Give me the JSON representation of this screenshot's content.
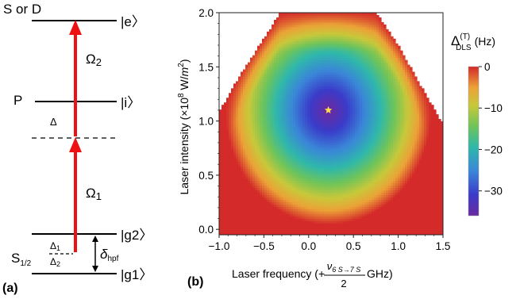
{
  "panel_a": {
    "panel_label": "(a)",
    "level_labels_left": {
      "top": "S or D",
      "mid": "P",
      "ground": "S"
    },
    "ground_sub": "1/2",
    "kets": {
      "e": "|e〉",
      "i": "|i〉",
      "g2": "|g2〉",
      "g1": "|g1〉"
    },
    "omega": {
      "upper": "Ω",
      "upper_sub": "2",
      "lower": "Ω",
      "lower_sub": "1"
    },
    "detuning": "Δ",
    "delta1": {
      "sym": "Δ",
      "sub": "1"
    },
    "delta2": {
      "sym": "Δ",
      "sub": "2"
    },
    "hpf": {
      "sym": "δ",
      "sub": "hpf"
    },
    "colors": {
      "arrow": "#ee1111",
      "line": "#000000"
    }
  },
  "panel_b": {
    "panel_label": "(b)",
    "ylabel_pre": "Laser intensity (×10",
    "ylabel_exp": "8",
    "ylabel_mid": " W/",
    "ylabel_m": "m",
    "ylabel_exp2": "2",
    "ylabel_post": ")",
    "xlabel_pre": "Laser frequency (+",
    "xlabel_num": "ν",
    "xlabel_num_sub": "6 S→7 S",
    "xlabel_den": "2",
    "xlabel_post": " GHz)",
    "colorbar_title": "Δ",
    "colorbar_sup": "(T)",
    "colorbar_sub": "DLS",
    "colorbar_unit": "(Hz)",
    "colors": {
      "star": "#ffe04a"
    }
  },
  "chart_data": {
    "type": "heatmap",
    "title": "",
    "xlabel": "Laser frequency (+ν6S→7S/2 GHz)",
    "ylabel": "Laser intensity (×10^8 W/m^2)",
    "xlim": [
      -1.0,
      1.5
    ],
    "ylim": [
      -0.05,
      2.0
    ],
    "x_ticks": [
      "-1.0",
      "-0.5",
      "0.0",
      "0.5",
      "1.0",
      "1.5"
    ],
    "x_tick_values": [
      -1.0,
      -0.5,
      0.0,
      0.5,
      1.0,
      1.5
    ],
    "y_ticks": [
      "0.0",
      "0.5",
      "1.0",
      "1.5",
      "2.0"
    ],
    "y_tick_values": [
      0.0,
      0.5,
      1.0,
      1.5,
      2.0
    ],
    "colorbar": {
      "label": "Δ(T)DLS (Hz)",
      "ticks": [
        "0",
        "-10",
        "-20",
        "-30"
      ],
      "tick_values": [
        0,
        -10,
        -20,
        -30
      ],
      "range": [
        -36,
        0
      ]
    },
    "minimum_marker": {
      "x": 0.22,
      "y": 1.1,
      "symbol": "star"
    },
    "valid_region_boundary": [
      {
        "x": -1.0,
        "y": 1.08
      },
      {
        "x": -0.75,
        "y": 1.45
      },
      {
        "x": -0.5,
        "y": 1.76
      },
      {
        "x": -0.32,
        "y": 2.0
      },
      {
        "x": 0.75,
        "y": 2.0
      },
      {
        "x": 1.0,
        "y": 1.7
      },
      {
        "x": 1.25,
        "y": 1.33
      },
      {
        "x": 1.5,
        "y": 0.97
      }
    ]
  }
}
